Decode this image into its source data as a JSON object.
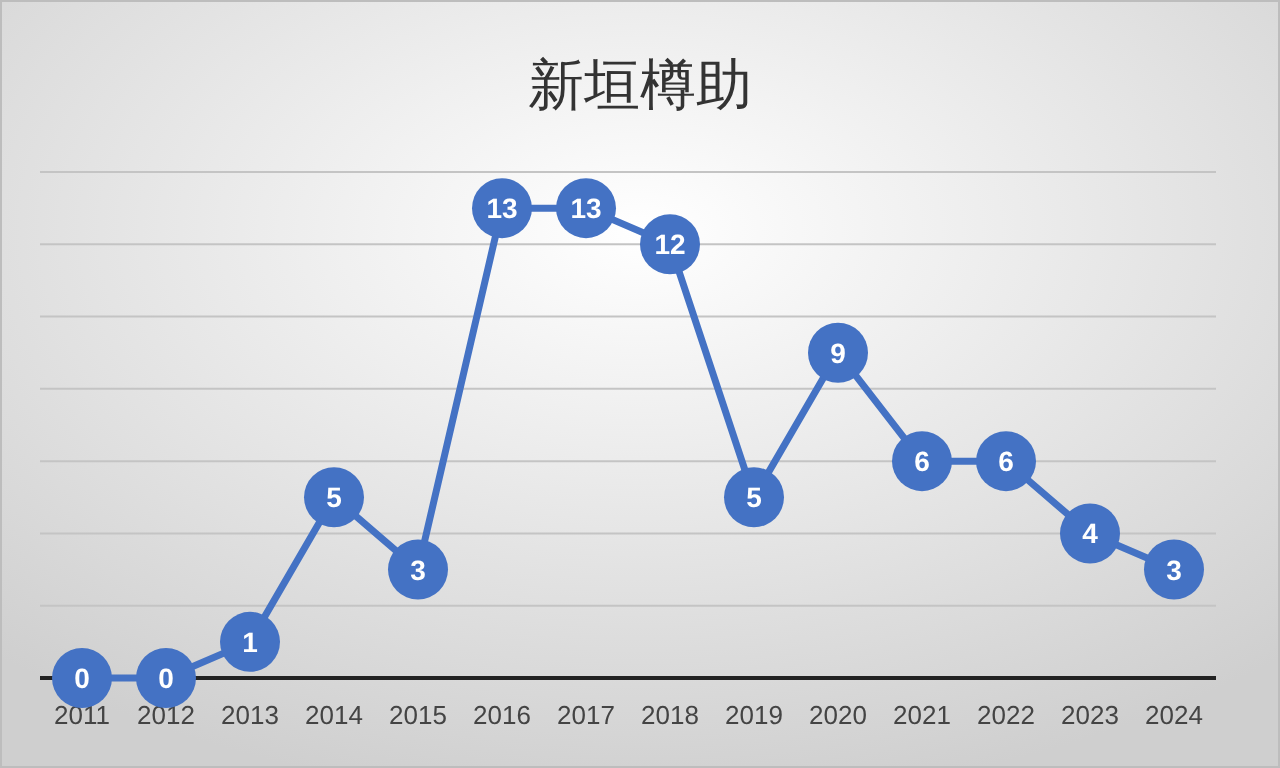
{
  "chart_data": {
    "type": "line",
    "title": "新垣樽助",
    "categories": [
      "2011",
      "2012",
      "2013",
      "2014",
      "2015",
      "2016",
      "2017",
      "2018",
      "2019",
      "2020",
      "2021",
      "2022",
      "2023",
      "2024"
    ],
    "series": [
      {
        "color": "#4472c4",
        "values": [
          0,
          0,
          1,
          5,
          3,
          13,
          13,
          12,
          5,
          9,
          6,
          6,
          4,
          3
        ]
      }
    ],
    "ylim": [
      0,
      14
    ],
    "yticks": [
      {
        "value": 0,
        "label": null
      },
      {
        "value": 2,
        "label": null
      },
      {
        "value": 4,
        "label": null
      },
      {
        "value": 6,
        "label": null
      },
      {
        "value": 8,
        "label": null
      },
      {
        "value": 10,
        "label": null
      },
      {
        "value": 12,
        "label": null
      },
      {
        "value": 14,
        "label": null
      }
    ],
    "tick_labels": "x",
    "grid": "y",
    "data_labels": true,
    "marker": "circle",
    "line_style": "solid"
  }
}
